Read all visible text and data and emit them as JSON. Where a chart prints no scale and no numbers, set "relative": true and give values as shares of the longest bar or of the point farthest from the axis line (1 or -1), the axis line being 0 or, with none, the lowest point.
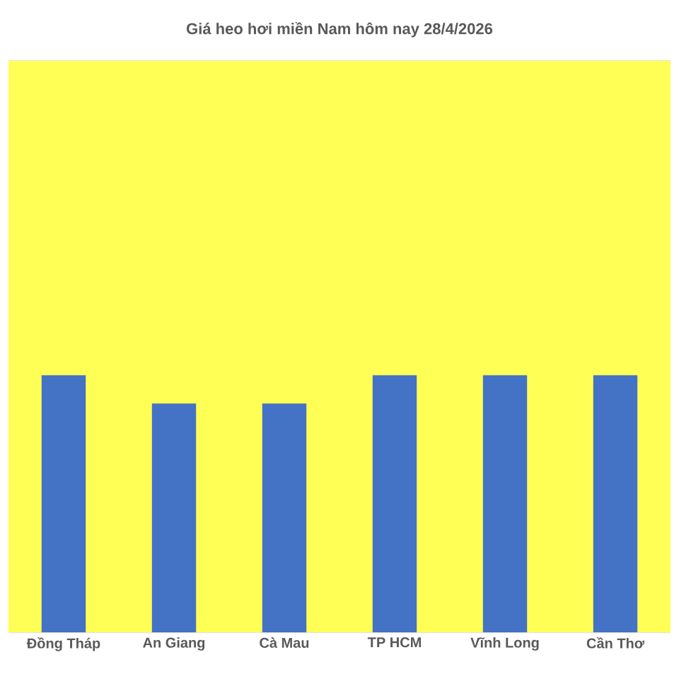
{
  "chart_data": {
    "type": "bar",
    "title": "Giá heo hơi miền Nam hôm nay 28/4/2026",
    "categories": [
      "Đồng Tháp",
      "An Giang",
      "Cà Mau",
      "TP HCM",
      "Vĩnh Long",
      "Cần Thơ"
    ],
    "values": [
      1,
      0.89,
      0.89,
      1,
      1,
      1
    ],
    "color": "#4472c4",
    "relative": true,
    "grid": "y"
  }
}
